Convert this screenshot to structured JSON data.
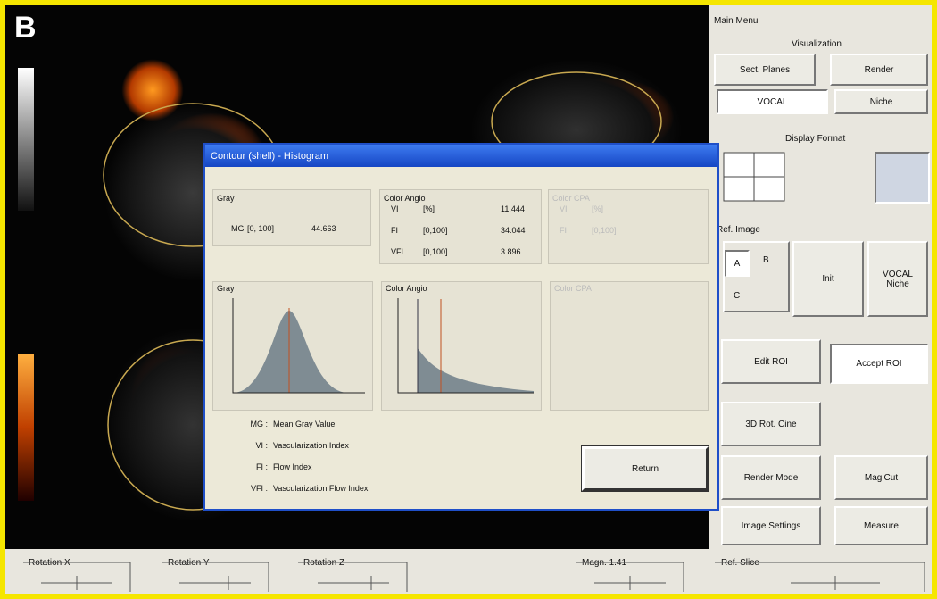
{
  "image_label": "B",
  "main_menu": {
    "title": "Main Menu",
    "visualization": {
      "label": "Visualization",
      "buttons": [
        "Sect. Planes",
        "Render",
        "VOCAL",
        "Niche"
      ]
    },
    "display_format": "Display Format",
    "ref_image": {
      "label": "Ref. Image",
      "options": [
        "A",
        "B",
        "C"
      ],
      "init": "Init",
      "vocal_niche": "VOCAL Niche"
    },
    "buttons": [
      "Edit ROI",
      "Accept ROI",
      "3D Rot. Cine",
      "Render Mode",
      "MagiCut",
      "Image Settings",
      "Measure"
    ]
  },
  "bottom_controls": [
    "Rotation X",
    "Rotation Y",
    "Rotation Z",
    "Magn. 1.41",
    "Ref. Slice"
  ],
  "dialog": {
    "title": "Contour (shell) - Histogram",
    "gray": {
      "label": "Gray",
      "rows": [
        [
          "MG",
          "[0, 100]",
          "44.663"
        ]
      ]
    },
    "color_angio": {
      "label": "Color Angio",
      "rows": [
        [
          "VI",
          "[%]",
          "11.444"
        ],
        [
          "FI",
          "[0,100]",
          "34.044"
        ],
        [
          "VFI",
          "[0,100]",
          "3.896"
        ]
      ]
    },
    "color_cpa": {
      "label": "Color CPA",
      "rows": [
        [
          "VI",
          "[%]"
        ],
        [
          "FI",
          "[0,100]"
        ]
      ]
    },
    "histograms": [
      "Gray",
      "Color Angio",
      "Color CPA"
    ],
    "legend": [
      [
        "MG :",
        "Mean Gray Value"
      ],
      [
        "VI :",
        "Vascularization Index"
      ],
      [
        "FI :",
        "Flow Index"
      ],
      [
        "VFI :",
        "Vascularization Flow Index"
      ]
    ],
    "return": "Return"
  }
}
